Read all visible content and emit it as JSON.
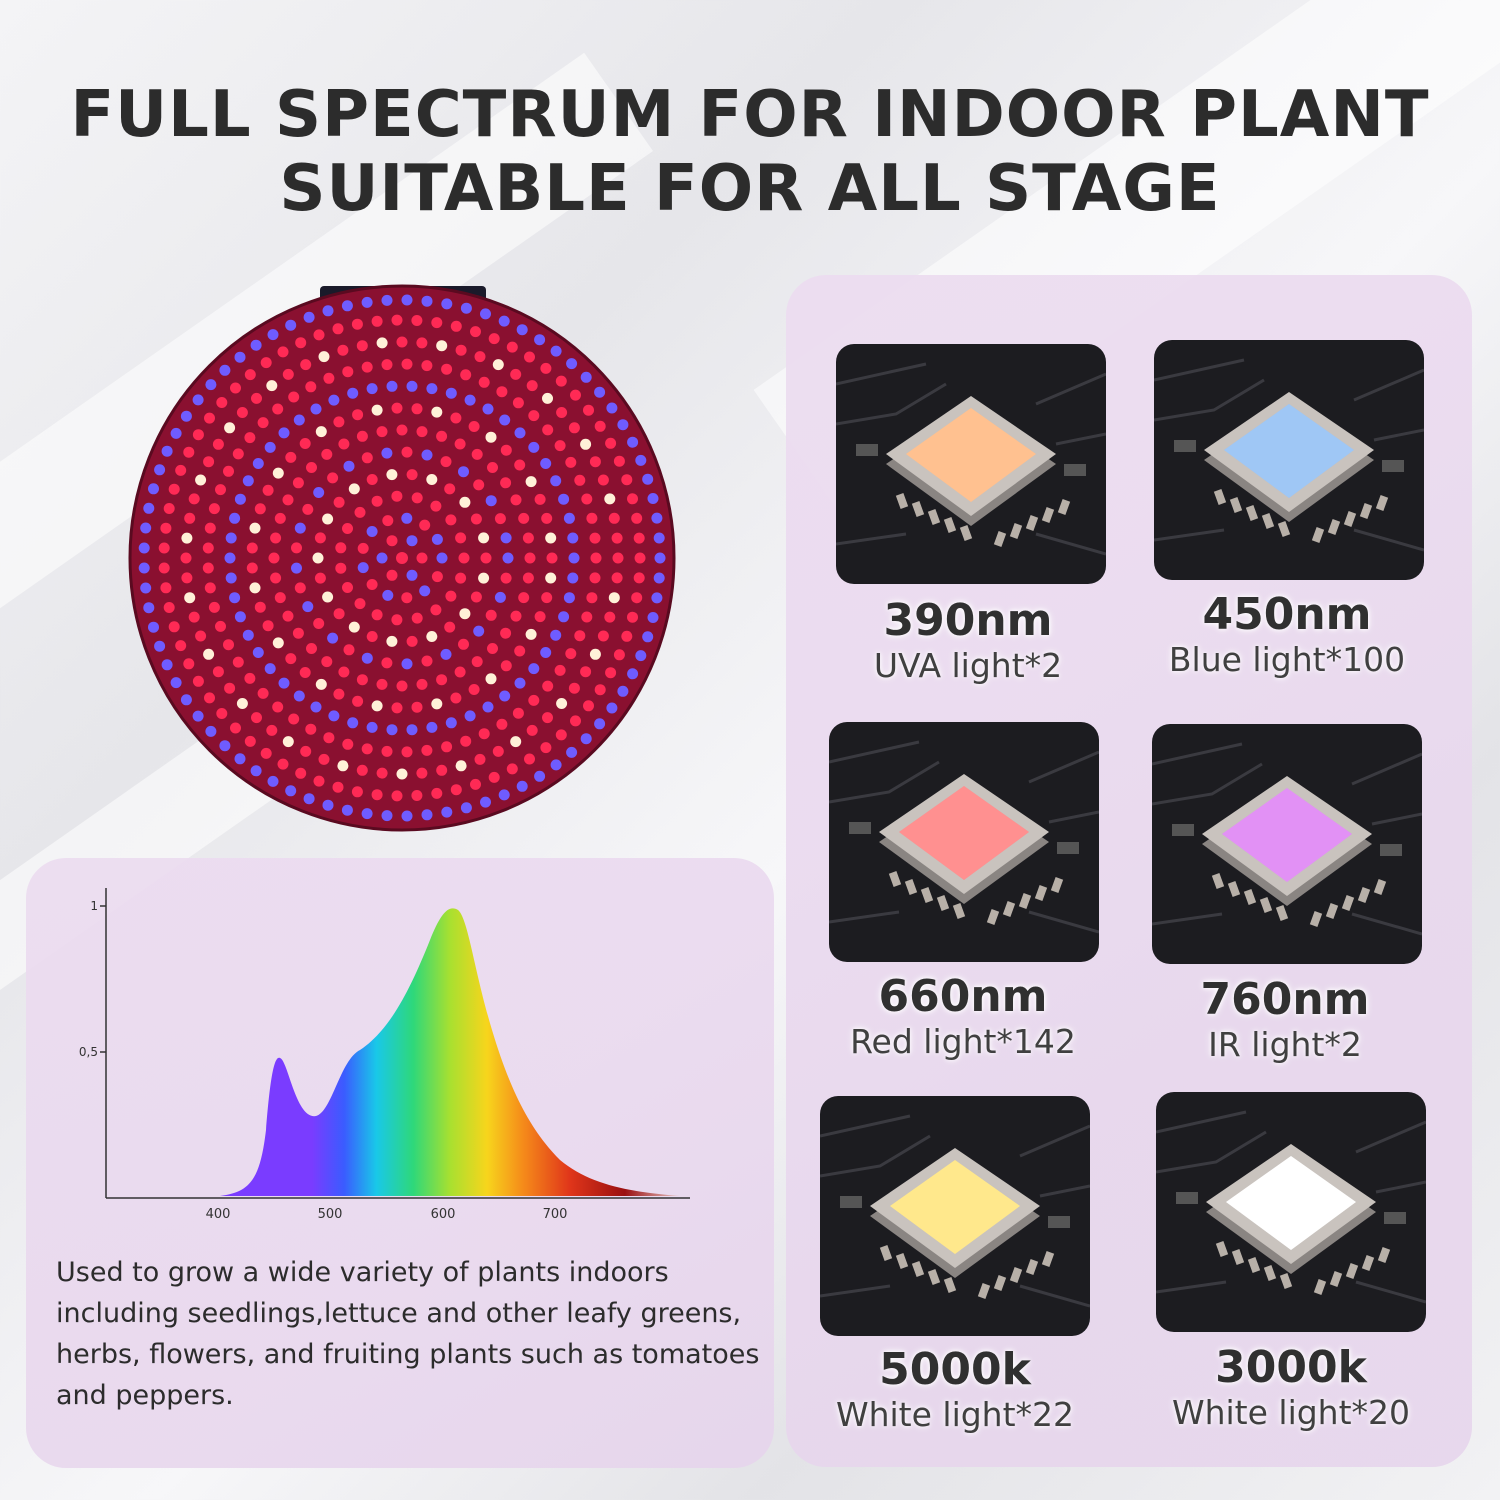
{
  "title": {
    "line1": "FULL SPECTRUM FOR INDOOR PLANT",
    "line2": "SUITABLE FOR ALL STAGE"
  },
  "lamp": {
    "leds": [
      "red",
      "blue",
      "white"
    ],
    "colors": {
      "red": "#ff2a55",
      "blue": "#6f5cff",
      "white": "#fff1d8",
      "board": "#8a1030"
    }
  },
  "spectrum_chart": {
    "y_ticks": [
      "1",
      "0,5"
    ],
    "x_ticks": [
      "400",
      "500",
      "600",
      "700"
    ]
  },
  "description": "Used to grow a wide variety of plants indoors including seedlings,lettuce and other leafy greens, herbs, flowers, and fruiting plants such as tomatoes and peppers.",
  "lights": [
    {
      "wavelength": "390nm",
      "label": "UVA light*2",
      "color": "#ffad6b"
    },
    {
      "wavelength": "450nm",
      "label": "Blue light*100",
      "color": "#7fb4f2"
    },
    {
      "wavelength": "660nm",
      "label": "Red light*142",
      "color": "#ff6b6b"
    },
    {
      "wavelength": "760nm",
      "label": "IR light*2",
      "color": "#d96cf2"
    },
    {
      "wavelength": "5000k",
      "label": "White light*22",
      "color": "#ffe066"
    },
    {
      "wavelength": "3000k",
      "label": "White light*20",
      "color": "#ffffff"
    }
  ]
}
